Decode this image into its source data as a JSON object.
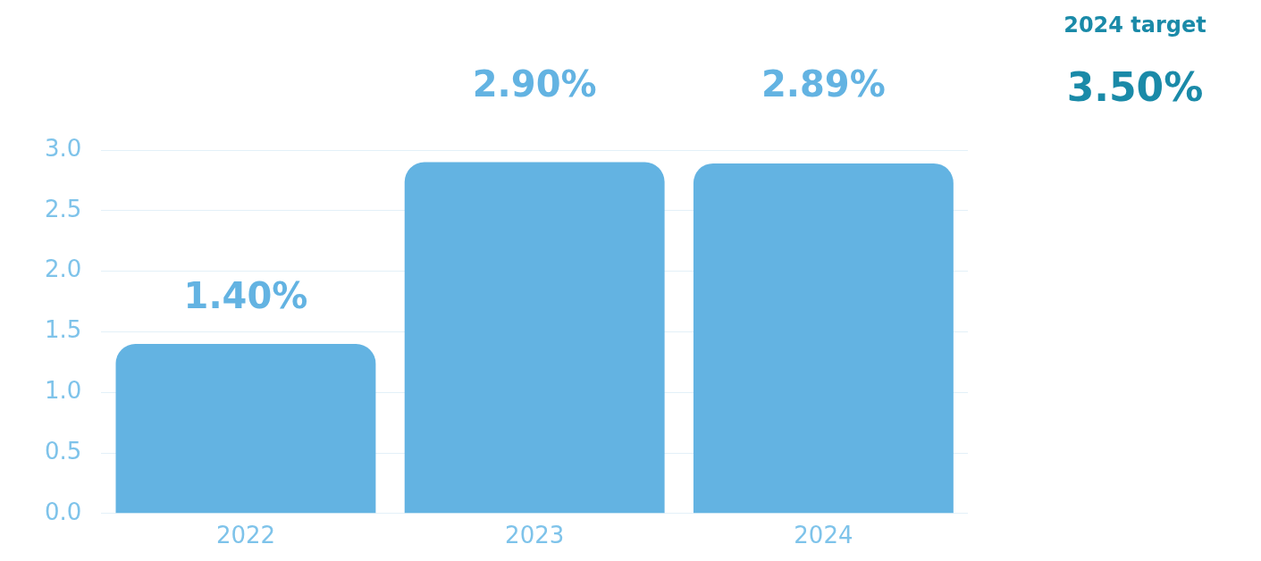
{
  "chart_data": {
    "type": "bar",
    "categories": [
      "2022",
      "2023",
      "2024"
    ],
    "values": [
      1.4,
      2.9,
      2.89
    ],
    "value_labels": [
      "1.40%",
      "2.90%",
      "2.89%"
    ],
    "color": "#63b3e2",
    "ylim": [
      0,
      3.0
    ],
    "yticks": [
      {
        "value": 0,
        "label": "0.0"
      },
      0.5,
      {
        "value": 1,
        "label": "1.0"
      },
      1.5,
      {
        "value": 2,
        "label": "2.0"
      },
      2.5,
      {
        "value": 3,
        "label": "3.0"
      }
    ],
    "grid": "y",
    "annotations": [
      "2024 target",
      "3.50%"
    ]
  }
}
